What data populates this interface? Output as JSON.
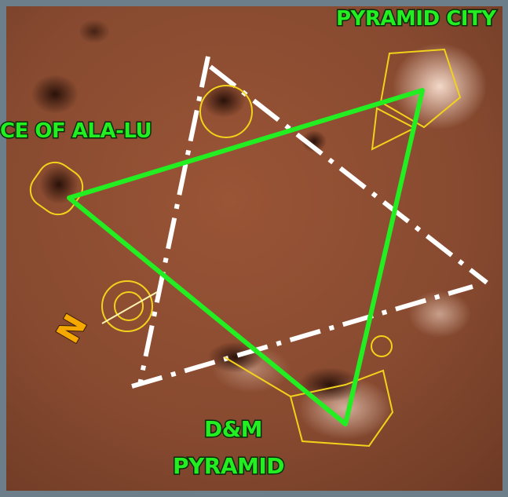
{
  "labels": {
    "top_right": "PYRAMID CITY",
    "left": "CE OF ALA-LU",
    "bottom_line1": "D&M",
    "bottom_line2": "PYRAMID",
    "compass": "N"
  }
}
